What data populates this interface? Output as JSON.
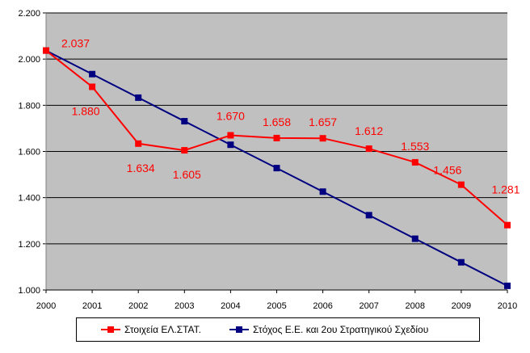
{
  "chart_data": {
    "type": "line",
    "categories": [
      "2000",
      "2001",
      "2002",
      "2003",
      "2004",
      "2005",
      "2006",
      "2007",
      "2008",
      "2009",
      "2010"
    ],
    "ylim": [
      1000,
      2200
    ],
    "yticks": [
      1000,
      1200,
      1400,
      1600,
      1800,
      2000,
      2200
    ],
    "ytick_labels": [
      "1.000",
      "1.200",
      "1.400",
      "1.600",
      "1.800",
      "2.000",
      "2.200"
    ],
    "grid": true,
    "legend_position": "bottom",
    "plot_background": "#c0c0c0",
    "series": [
      {
        "name": "Στοιχεία ΕΛ.ΣΤΑΤ.",
        "color": "#ff0000",
        "values": [
          2037,
          1880,
          1634,
          1605,
          1670,
          1658,
          1657,
          1612,
          1553,
          1456,
          1281
        ],
        "data_labels": [
          "2.037",
          "1.880",
          "1.634",
          "1.605",
          "1.670",
          "1.658",
          "1.657",
          "1.612",
          "1.553",
          "1.456",
          "1.281"
        ]
      },
      {
        "name": "Στόχος Ε.Ε. και 2ου Στρατηγικού Σχεδίου",
        "color": "#000080",
        "values": [
          2037,
          1935,
          1833,
          1731,
          1629,
          1528,
          1426,
          1324,
          1222,
          1120,
          1018
        ]
      }
    ]
  }
}
